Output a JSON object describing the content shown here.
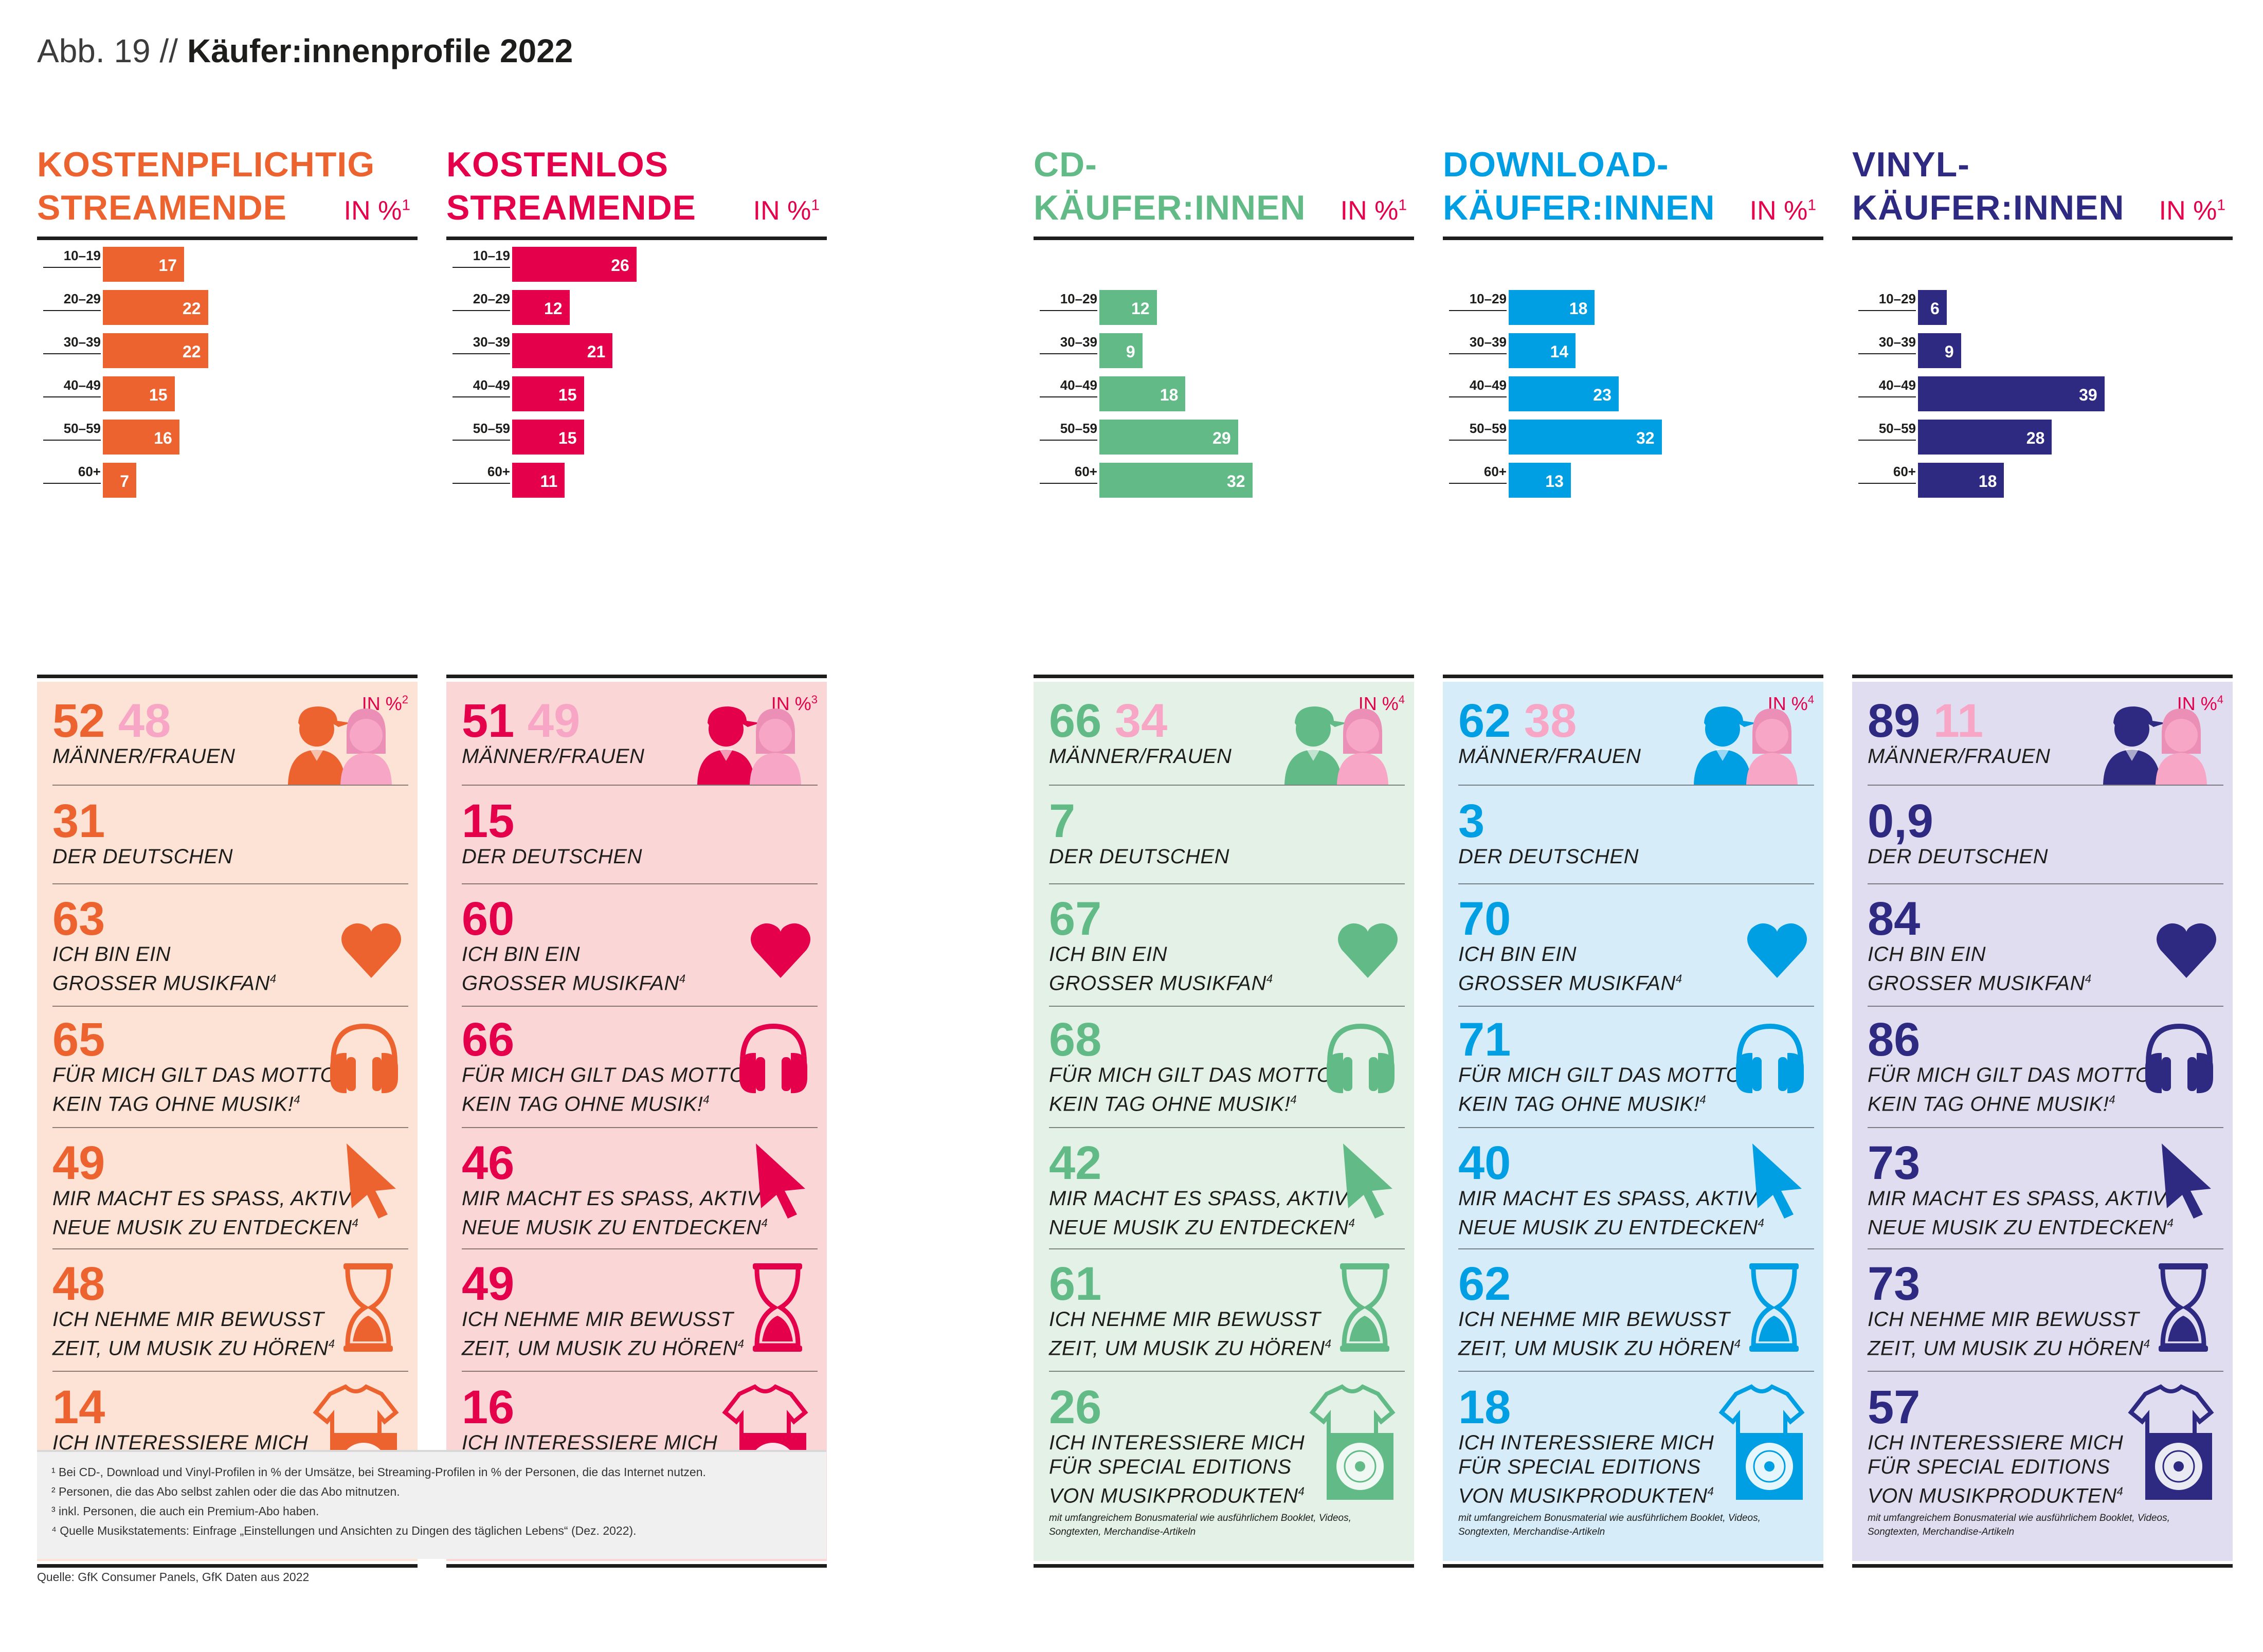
{
  "figure_label": "Abb. 19 //",
  "figure_title": "Käufer:innenprofile 2022",
  "chart_data": [
    {
      "type": "bar",
      "title": "KOSTENPFLICHTIG STREAMENDE",
      "ylabel": "IN %",
      "categories": [
        "10–19",
        "20–29",
        "30–39",
        "40–49",
        "50–59",
        "60+"
      ],
      "values": [
        17,
        22,
        22,
        15,
        16,
        7
      ],
      "color": "#ec6330"
    },
    {
      "type": "bar",
      "title": "KOSTENLOS STREAMENDE",
      "ylabel": "IN %",
      "categories": [
        "10–19",
        "20–29",
        "30–39",
        "40–49",
        "50–59",
        "60+"
      ],
      "values": [
        26,
        12,
        21,
        15,
        15,
        11
      ],
      "color": "#e4004b"
    },
    {
      "type": "bar",
      "title": "CD-KÄUFER:INNEN",
      "ylabel": "IN %",
      "categories": [
        "10–29",
        "30–39",
        "40–49",
        "50–59",
        "60+"
      ],
      "values": [
        12,
        9,
        18,
        29,
        32
      ],
      "color": "#62bb87"
    },
    {
      "type": "bar",
      "title": "DOWNLOAD-KÄUFER:INNEN",
      "ylabel": "IN %",
      "categories": [
        "10–29",
        "30–39",
        "40–49",
        "50–59",
        "60+"
      ],
      "values": [
        18,
        14,
        23,
        32,
        13
      ],
      "color": "#009fe3"
    },
    {
      "type": "bar",
      "title": "VINYL-KÄUFER:INNEN",
      "ylabel": "IN %",
      "categories": [
        "10–29",
        "30–39",
        "40–49",
        "50–59",
        "60+"
      ],
      "values": [
        6,
        9,
        39,
        28,
        18
      ],
      "color": "#2e2a81"
    }
  ],
  "columns": [
    {
      "key": "paid",
      "title_lines": [
        "KOSTENPFLICHTIG",
        "STREAMENDE"
      ],
      "unit": "IN %",
      "unit_sup": "1",
      "color": "#ec6330",
      "light": "#f7a6c6",
      "bg": "#fde3d6",
      "panel_unit": "IN %",
      "panel_sup": "2",
      "men": "52",
      "women": "48",
      "germans": "31",
      "fan": "63",
      "motto": "65",
      "discover": "49",
      "time": "48",
      "special": "14"
    },
    {
      "key": "free",
      "title_lines": [
        "KOSTENLOS",
        "STREAMENDE"
      ],
      "unit": "IN %",
      "unit_sup": "1",
      "color": "#e4004b",
      "light": "#f7a6c6",
      "bg": "#fbd6d6",
      "panel_unit": "IN %",
      "panel_sup": "3",
      "men": "51",
      "women": "49",
      "germans": "15",
      "fan": "60",
      "motto": "66",
      "discover": "46",
      "time": "49",
      "special": "16"
    },
    {
      "key": "cd",
      "title_lines": [
        "CD-",
        "KÄUFER:INNEN"
      ],
      "unit": "IN %",
      "unit_sup": "1",
      "color": "#62bb87",
      "light": "#f7a6c6",
      "bg": "#e4f1e7",
      "panel_unit": "IN %",
      "panel_sup": "4",
      "men": "66",
      "women": "34",
      "germans": "7",
      "fan": "67",
      "motto": "68",
      "discover": "42",
      "time": "61",
      "special": "26"
    },
    {
      "key": "download",
      "title_lines": [
        "DOWNLOAD-",
        "KÄUFER:INNEN"
      ],
      "unit": "IN %",
      "unit_sup": "1",
      "color": "#009fe3",
      "light": "#f7a6c6",
      "bg": "#d6ecf9",
      "panel_unit": "IN %",
      "panel_sup": "4",
      "men": "62",
      "women": "38",
      "germans": "3",
      "fan": "70",
      "motto": "71",
      "discover": "40",
      "time": "62",
      "special": "18"
    },
    {
      "key": "vinyl",
      "title_lines": [
        "VINYL-",
        "KÄUFER:INNEN"
      ],
      "unit": "IN %",
      "unit_sup": "1",
      "color": "#2e2a81",
      "light": "#f7a6c6",
      "bg": "#e1ddf0",
      "panel_unit": "IN %",
      "panel_sup": "4",
      "men": "89",
      "women": "11",
      "germans": "0,9",
      "fan": "84",
      "motto": "86",
      "discover": "73",
      "time": "73",
      "special": "57"
    }
  ],
  "labels": {
    "men_women": "MÄNNER/FRAUEN",
    "germans": "DER DEUTSCHEN",
    "fan": [
      "ICH BIN EIN",
      "GROSSER MUSIKFAN"
    ],
    "motto": [
      "FÜR MICH GILT DAS MOTTO:",
      "KEIN TAG OHNE MUSIK!"
    ],
    "discover": [
      "MIR MACHT ES SPASS, AKTIV",
      "NEUE MUSIK ZU ENTDECKEN"
    ],
    "time": [
      "ICH NEHME MIR BEWUSST",
      "ZEIT, UM MUSIK ZU HÖREN"
    ],
    "special": [
      "ICH INTERESSIERE MICH",
      "FÜR SPECIAL EDITIONS",
      "VON MUSIKPRODUKTEN"
    ],
    "special_note": "mit umfangreichem Bonusmaterial wie ausführlichem Booklet, Videos, Songtexten, Merchandise-Artikeln",
    "note_sup": "4"
  },
  "footnotes": [
    "¹ Bei CD-, Download und Vinyl-Profilen in % der Umsätze, bei Streaming-Profilen in % der Personen, die das Internet nutzen.",
    "² Personen, die das Abo selbst zahlen oder die das Abo mitnutzen.",
    "³ inkl. Personen, die auch ein Premium-Abo haben.",
    "⁴ Quelle Musikstatements: Einfrage „Einstellungen und Ansichten zu Dingen des täglichen Lebens“ (Dez. 2022)."
  ],
  "source": "Quelle: GfK Consumer Panels, GfK Daten aus 2022"
}
